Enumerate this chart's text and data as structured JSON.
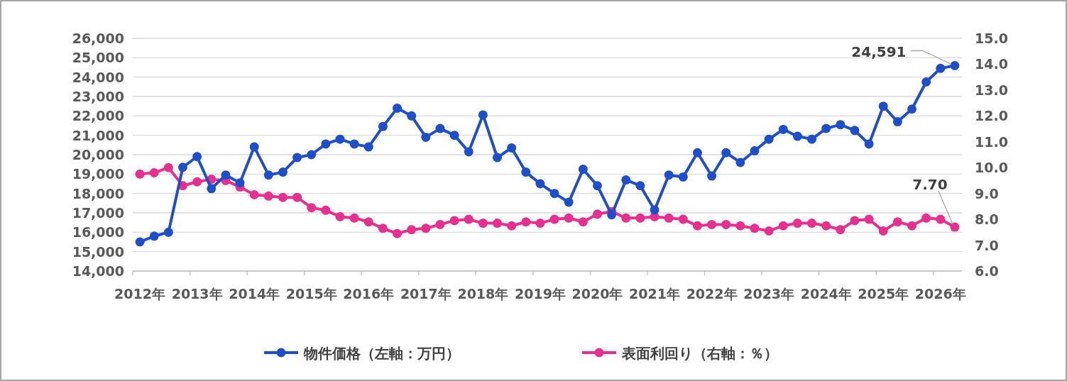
{
  "chart_data": {
    "type": "line",
    "categories": [
      "2012年",
      null,
      null,
      null,
      "2013年",
      null,
      null,
      null,
      "2014年",
      null,
      null,
      null,
      "2015年",
      null,
      null,
      null,
      "2016年",
      null,
      null,
      null,
      "2017年",
      null,
      null,
      null,
      "2018年",
      null,
      null,
      null,
      "2019年",
      null,
      null,
      null,
      "2020年",
      null,
      null,
      null,
      "2021年",
      null,
      null,
      null,
      "2022年",
      null,
      null,
      null,
      "2023年",
      null,
      null,
      null,
      "2024年",
      null,
      null,
      null,
      "2025年",
      null,
      null,
      null,
      "2026年",
      null
    ],
    "series": [
      {
        "name": "物件価格（左軸：万円）",
        "color": "#1f4fc8",
        "values": [
          15500,
          15800,
          16000,
          19350,
          19900,
          18250,
          18950,
          18550,
          20400,
          18950,
          19100,
          19850,
          20000,
          20550,
          20800,
          20550,
          20400,
          21450,
          22400,
          22000,
          20900,
          21350,
          21000,
          20150,
          22050,
          19850,
          20350,
          19100,
          18500,
          18000,
          17550,
          19250,
          18400,
          16900,
          18700,
          18400,
          17150,
          18950,
          18850,
          20100,
          18900,
          20100,
          19600,
          20200,
          20800,
          21300,
          20950,
          20800,
          21350,
          21550,
          21250,
          20550,
          22500,
          21700,
          22350,
          23750,
          24450,
          24591
        ],
        "value_labels": [
          null,
          null,
          null,
          null,
          null,
          null,
          null,
          null,
          null,
          null,
          null,
          null,
          null,
          null,
          null,
          null,
          null,
          null,
          null,
          null,
          null,
          null,
          null,
          null,
          null,
          null,
          null,
          null,
          null,
          null,
          null,
          null,
          null,
          null,
          null,
          null,
          null,
          null,
          null,
          null,
          null,
          null,
          null,
          null,
          null,
          null,
          null,
          null,
          null,
          null,
          null,
          null,
          null,
          null,
          null,
          null,
          null,
          "24,591"
        ]
      },
      {
        "name": "表面利回り（右軸：％）",
        "color": "#e6308f",
        "axis": "y2",
        "values": [
          9.75,
          9.8,
          10.0,
          9.3,
          9.45,
          9.55,
          9.5,
          9.25,
          8.95,
          8.9,
          8.85,
          8.85,
          8.45,
          8.35,
          8.1,
          8.05,
          7.9,
          7.65,
          7.45,
          7.6,
          7.65,
          7.8,
          7.95,
          8.0,
          7.85,
          7.85,
          7.75,
          7.9,
          7.85,
          8.0,
          8.05,
          7.9,
          8.2,
          8.3,
          8.05,
          8.05,
          8.1,
          8.05,
          8.0,
          7.75,
          7.8,
          7.8,
          7.75,
          7.65,
          7.55,
          7.75,
          7.85,
          7.85,
          7.75,
          7.6,
          7.95,
          8.0,
          7.55,
          7.9,
          7.75,
          8.05,
          8.0,
          7.7
        ],
        "value_labels": [
          null,
          null,
          null,
          null,
          null,
          null,
          null,
          null,
          null,
          null,
          null,
          null,
          null,
          null,
          null,
          null,
          null,
          null,
          null,
          null,
          null,
          null,
          null,
          null,
          null,
          null,
          null,
          null,
          null,
          null,
          null,
          null,
          null,
          null,
          null,
          null,
          null,
          null,
          null,
          null,
          null,
          null,
          null,
          null,
          null,
          null,
          null,
          null,
          null,
          null,
          null,
          null,
          null,
          null,
          null,
          null,
          null,
          "7.70"
        ]
      }
    ],
    "ylim": [
      14000,
      26000
    ],
    "yticks": [
      {
        "value": 14000,
        "label": "14,000"
      },
      {
        "value": 15000,
        "label": "15,000"
      },
      {
        "value": 16000,
        "label": "16,000"
      },
      {
        "value": 17000,
        "label": "17,000"
      },
      {
        "value": 18000,
        "label": "18,000"
      },
      {
        "value": 19000,
        "label": "19,000"
      },
      {
        "value": 20000,
        "label": "20,000"
      },
      {
        "value": 21000,
        "label": "21,000"
      },
      {
        "value": 22000,
        "label": "22,000"
      },
      {
        "value": 23000,
        "label": "23,000"
      },
      {
        "value": 24000,
        "label": "24,000"
      },
      {
        "value": 25000,
        "label": "25,000"
      },
      {
        "value": 26000,
        "label": "26,000"
      }
    ],
    "y2lim": [
      6,
      15
    ],
    "y2ticks": [
      {
        "value": 6,
        "label": "6.0"
      },
      {
        "value": 7,
        "label": "7.0"
      },
      {
        "value": 8,
        "label": "8.0"
      },
      {
        "value": 9,
        "label": "9.0"
      },
      {
        "value": 10,
        "label": "10.0"
      },
      {
        "value": 11,
        "label": "11.0"
      },
      {
        "value": 12,
        "label": "12.0"
      },
      {
        "value": 13,
        "label": "13.0"
      },
      {
        "value": 14,
        "label": "14.0"
      },
      {
        "value": 15,
        "label": "15.0"
      }
    ],
    "grid": "y",
    "legend": "bottom",
    "marker": "circle",
    "line_style": "solid"
  }
}
